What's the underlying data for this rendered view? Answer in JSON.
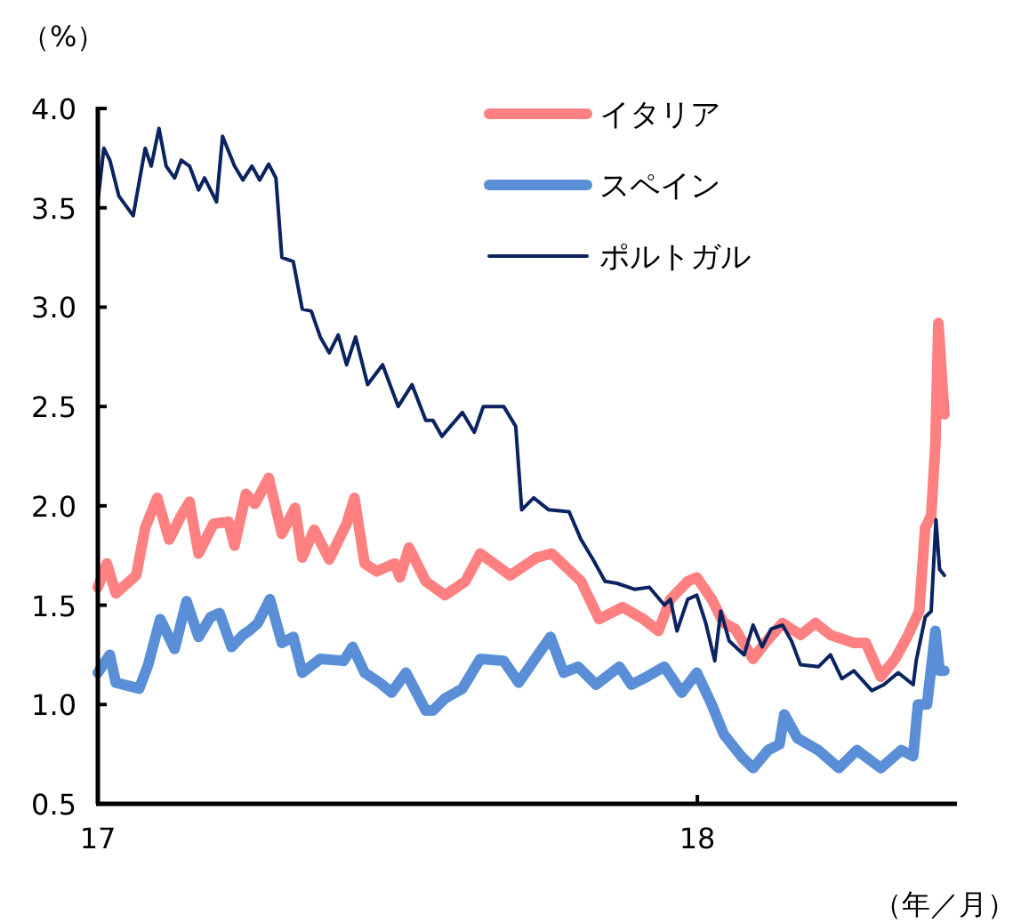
{
  "chart_data": {
    "type": "line",
    "xlabel": "（年／月）",
    "ylabel": "（%）",
    "xlim": [
      2017,
      2018.433
    ],
    "ylim": [
      0.5,
      4.0
    ],
    "xticks": [
      {
        "value": 2017,
        "label": "17"
      },
      {
        "value": 2018,
        "label": "18"
      }
    ],
    "yticks": [
      {
        "value": 0.5,
        "label": "0.5"
      },
      {
        "value": 1,
        "label": "1.0"
      },
      {
        "value": 1.5,
        "label": "1.5"
      },
      {
        "value": 2,
        "label": "2.0"
      },
      {
        "value": 2.5,
        "label": "2.5"
      },
      {
        "value": 3,
        "label": "3.0"
      },
      {
        "value": 3.5,
        "label": "3.5"
      },
      {
        "value": 4,
        "label": "4.0"
      }
    ],
    "legend": "top right",
    "series": [
      {
        "name": "イタリア",
        "color": "#ff8080",
        "x": [
          2017,
          2017.015,
          2017.03,
          2017.064,
          2017.079,
          2017.099,
          2017.119,
          2017.139,
          2017.153,
          2017.168,
          2017.193,
          2017.218,
          2017.228,
          2017.247,
          2017.262,
          2017.285,
          2017.307,
          2017.329,
          2017.341,
          2017.361,
          2017.386,
          2017.415,
          2017.428,
          2017.445,
          2017.465,
          2017.495,
          2017.504,
          2017.519,
          2017.547,
          2017.579,
          2017.613,
          2017.638,
          2017.688,
          2017.732,
          2017.757,
          2017.806,
          2017.836,
          2017.875,
          2017.91,
          2017.935,
          2017.955,
          2017.984,
          2017.999,
          2018.024,
          2018.044,
          2018.063,
          2018.093,
          2018.113,
          2018.142,
          2018.172,
          2018.197,
          2018.222,
          2018.261,
          2018.281,
          2018.306,
          2018.33,
          2018.35,
          2018.37,
          2018.38,
          2018.39,
          2018.397,
          2018.402,
          2018.412
        ],
        "values": [
          1.59,
          1.71,
          1.56,
          1.65,
          1.89,
          2.04,
          1.83,
          1.95,
          2.02,
          1.76,
          1.91,
          1.92,
          1.8,
          2.06,
          2.01,
          2.14,
          1.86,
          1.99,
          1.74,
          1.88,
          1.73,
          1.91,
          2.04,
          1.71,
          1.67,
          1.71,
          1.64,
          1.79,
          1.62,
          1.55,
          1.62,
          1.76,
          1.65,
          1.74,
          1.76,
          1.62,
          1.43,
          1.49,
          1.43,
          1.37,
          1.53,
          1.62,
          1.64,
          1.53,
          1.41,
          1.38,
          1.23,
          1.31,
          1.41,
          1.35,
          1.41,
          1.35,
          1.31,
          1.31,
          1.14,
          1.23,
          1.34,
          1.47,
          1.89,
          1.95,
          2.31,
          2.92,
          2.46
        ]
      },
      {
        "name": "スペイン",
        "color": "#5a8fd8",
        "x": [
          2017,
          2017.02,
          2017.03,
          2017.069,
          2017.084,
          2017.104,
          2017.128,
          2017.148,
          2017.168,
          2017.188,
          2017.203,
          2017.223,
          2017.242,
          2017.252,
          2017.267,
          2017.287,
          2017.307,
          2017.326,
          2017.341,
          2017.371,
          2017.41,
          2017.425,
          2017.445,
          2017.47,
          2017.49,
          2017.514,
          2017.547,
          2017.559,
          2017.579,
          2017.608,
          2017.638,
          2017.677,
          2017.702,
          2017.727,
          2017.755,
          2017.777,
          2017.801,
          2017.831,
          2017.87,
          2017.89,
          2017.91,
          2017.945,
          2017.974,
          2017.999,
          2018.024,
          2018.044,
          2018.073,
          2018.093,
          2018.118,
          2018.137,
          2018.145,
          2018.167,
          2018.202,
          2018.236,
          2018.266,
          2018.306,
          2018.34,
          2018.36,
          2018.368,
          2018.383,
          2018.397,
          2018.404,
          2018.412
        ],
        "values": [
          1.16,
          1.25,
          1.11,
          1.08,
          1.2,
          1.43,
          1.28,
          1.52,
          1.34,
          1.44,
          1.46,
          1.29,
          1.35,
          1.37,
          1.41,
          1.53,
          1.31,
          1.34,
          1.16,
          1.23,
          1.22,
          1.29,
          1.16,
          1.11,
          1.06,
          1.16,
          0.97,
          0.97,
          1.03,
          1.08,
          1.23,
          1.22,
          1.11,
          1.22,
          1.34,
          1.16,
          1.19,
          1.1,
          1.19,
          1.1,
          1.13,
          1.19,
          1.06,
          1.16,
          1.0,
          0.85,
          0.74,
          0.68,
          0.77,
          0.8,
          0.95,
          0.83,
          0.77,
          0.68,
          0.77,
          0.68,
          0.77,
          0.74,
          1.0,
          1.0,
          1.37,
          1.17,
          1.17
        ]
      },
      {
        "name": "ポルトガル",
        "color": "#0b2360",
        "x": [
          2017,
          2017.01,
          2017.02,
          2017.035,
          2017.059,
          2017.079,
          2017.089,
          2017.102,
          2017.114,
          2017.128,
          2017.139,
          2017.153,
          2017.168,
          2017.178,
          2017.198,
          2017.208,
          2017.228,
          2017.242,
          2017.257,
          2017.27,
          2017.285,
          2017.297,
          2017.307,
          2017.326,
          2017.341,
          2017.356,
          2017.371,
          2017.386,
          2017.401,
          2017.415,
          2017.43,
          2017.45,
          2017.475,
          2017.501,
          2017.524,
          2017.547,
          2017.559,
          2017.574,
          2017.608,
          2017.628,
          2017.643,
          2017.677,
          2017.697,
          2017.707,
          2017.727,
          2017.752,
          2017.786,
          2017.806,
          2017.826,
          2017.846,
          2017.866,
          2017.895,
          2017.92,
          2017.945,
          2017.955,
          2017.966,
          2017.984,
          2017.999,
          2018.014,
          2018.029,
          2018.039,
          2018.053,
          2018.078,
          2018.093,
          2018.108,
          2018.123,
          2018.142,
          2018.157,
          2018.172,
          2018.202,
          2018.222,
          2018.241,
          2018.261,
          2018.291,
          2018.311,
          2018.335,
          2018.36,
          2018.365,
          2018.38,
          2018.39,
          2018.398,
          2018.404,
          2018.412
        ],
        "values": [
          3.53,
          3.8,
          3.74,
          3.56,
          3.46,
          3.8,
          3.71,
          3.9,
          3.71,
          3.65,
          3.74,
          3.71,
          3.59,
          3.65,
          3.53,
          3.86,
          3.71,
          3.64,
          3.71,
          3.64,
          3.72,
          3.65,
          3.25,
          3.23,
          2.99,
          2.98,
          2.85,
          2.77,
          2.86,
          2.71,
          2.85,
          2.61,
          2.71,
          2.5,
          2.61,
          2.43,
          2.43,
          2.35,
          2.47,
          2.37,
          2.5,
          2.5,
          2.4,
          1.98,
          2.04,
          1.98,
          1.97,
          1.83,
          1.73,
          1.62,
          1.61,
          1.58,
          1.59,
          1.5,
          1.53,
          1.37,
          1.53,
          1.55,
          1.41,
          1.22,
          1.47,
          1.32,
          1.25,
          1.4,
          1.29,
          1.38,
          1.4,
          1.32,
          1.2,
          1.19,
          1.25,
          1.13,
          1.17,
          1.07,
          1.1,
          1.16,
          1.1,
          1.22,
          1.44,
          1.47,
          1.93,
          1.68,
          1.65
        ]
      }
    ]
  }
}
